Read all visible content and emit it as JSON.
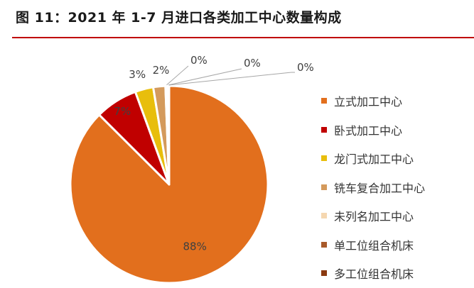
{
  "header": {
    "title": "图 11：2021 年 1-7 月进口各类加工中心数量构成"
  },
  "chart_data": {
    "type": "pie",
    "title": "",
    "legend_position": "right",
    "slices": [
      {
        "name": "立式加工中心",
        "value": 88,
        "label": "88%",
        "color": "#E26F1D"
      },
      {
        "name": "卧式加工中心",
        "value": 7,
        "label": "7%",
        "color": "#C00000"
      },
      {
        "name": "龙门式加工中心",
        "value": 3,
        "label": "3%",
        "color": "#E8BE0C"
      },
      {
        "name": "铣车复合加工中心",
        "value": 2,
        "label": "2%",
        "color": "#D49A5C"
      },
      {
        "name": "未列名加工中心",
        "value": 0.3,
        "label": "0%",
        "color": "#F5D7B0"
      },
      {
        "name": "单工位组合机床",
        "value": 0.2,
        "label": "0%",
        "color": "#A85A2A"
      },
      {
        "name": "多工位组合机床",
        "value": 0.1,
        "label": "0%",
        "color": "#8A3A10"
      }
    ]
  }
}
